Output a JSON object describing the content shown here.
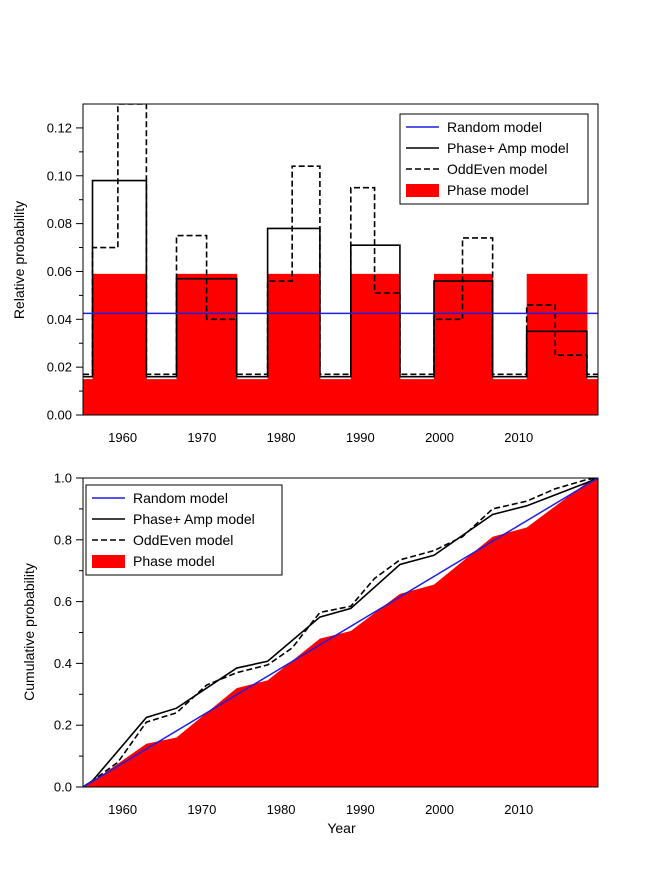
{
  "colors": {
    "random": "#1f1fe0",
    "phase_amp": "#000000",
    "odd_even": "#000000",
    "phase": "#ff0000"
  },
  "chart_data": [
    {
      "type": "step",
      "title": "",
      "xlabel": "",
      "ylabel": "Relative probability",
      "xlim": [
        1955,
        2020
      ],
      "ylim": [
        0,
        0.13
      ],
      "x_ticks": [
        1960,
        1970,
        1980,
        1990,
        2000,
        2010
      ],
      "y_ticks": [
        0.0,
        0.02,
        0.04,
        0.06,
        0.08,
        0.1,
        0.12
      ],
      "y_tick_labels": [
        "0.00",
        "0.02",
        "0.04",
        "0.06",
        "0.08",
        "0.10",
        "0.12"
      ],
      "legend": {
        "position": "top-right",
        "entries": [
          "Random model",
          "Phase+ Amp model",
          "OddEven model",
          "Phase model"
        ]
      },
      "series": [
        {
          "name": "Random model",
          "style": "line",
          "x": [
            1955,
            2020
          ],
          "y": [
            0.0425,
            0.0425
          ]
        },
        {
          "name": "Phase+ Amp model",
          "style": "step-solid",
          "edges": [
            1955,
            1956.2,
            1963,
            1966.8,
            1974.4,
            1978.3,
            1984.9,
            1988.8,
            1995,
            1999.3,
            2006.7,
            2011,
            2018.6,
            2020
          ],
          "values": [
            0.016,
            0.098,
            0.016,
            0.057,
            0.016,
            0.078,
            0.016,
            0.071,
            0.016,
            0.056,
            0.016,
            0.035,
            0.016
          ]
        },
        {
          "name": "OddEven model",
          "style": "step-dashed",
          "edges": [
            1955,
            1956.2,
            1959.4,
            1963,
            1966.8,
            1970.6,
            1974.4,
            1978.3,
            1981.4,
            1984.9,
            1988.8,
            1991.8,
            1995,
            1999.3,
            2002.9,
            2006.7,
            2011,
            2014.6,
            2018.6,
            2020
          ],
          "values": [
            0.017,
            0.07,
            0.13,
            0.017,
            0.075,
            0.04,
            0.017,
            0.056,
            0.104,
            0.017,
            0.095,
            0.051,
            0.017,
            0.04,
            0.074,
            0.017,
            0.046,
            0.025,
            0.017
          ]
        },
        {
          "name": "Phase model",
          "style": "step-filled",
          "edges": [
            1955,
            1956.2,
            1963,
            1966.8,
            1974.4,
            1978.3,
            1984.9,
            1988.8,
            1995,
            1999.3,
            2006.7,
            2011,
            2018.6,
            2020
          ],
          "values": [
            0.015,
            0.059,
            0.015,
            0.059,
            0.015,
            0.059,
            0.015,
            0.059,
            0.015,
            0.059,
            0.015,
            0.059,
            0.015
          ]
        }
      ]
    },
    {
      "type": "line",
      "title": "",
      "xlabel": "Year",
      "ylabel": "Cumulative probability",
      "xlim": [
        1955,
        2020
      ],
      "ylim": [
        0,
        1.0
      ],
      "x_ticks": [
        1960,
        1970,
        1980,
        1990,
        2000,
        2010
      ],
      "y_ticks": [
        0.0,
        0.2,
        0.4,
        0.6,
        0.8,
        1.0
      ],
      "y_tick_labels": [
        "0.0",
        "0.2",
        "0.4",
        "0.6",
        "0.8",
        "1.0"
      ],
      "legend": {
        "position": "top-left",
        "entries": [
          "Random model",
          "Phase+ Amp model",
          "OddEven model",
          "Phase model"
        ]
      },
      "series": [
        {
          "name": "Random model",
          "style": "line",
          "x": [
            1955,
            2020
          ],
          "y": [
            0,
            1.0
          ]
        },
        {
          "name": "Phase+ Amp model",
          "style": "solid",
          "x": [
            1955,
            1956.2,
            1963,
            1966.8,
            1974.4,
            1978.3,
            1984.9,
            1988.8,
            1995,
            1999.3,
            2006.7,
            2011,
            2018.6,
            2020
          ],
          "y": [
            0,
            0.02,
            0.225,
            0.255,
            0.385,
            0.407,
            0.55,
            0.578,
            0.72,
            0.75,
            0.882,
            0.91,
            0.985,
            1.0
          ]
        },
        {
          "name": "OddEven model",
          "style": "dashed",
          "x": [
            1955,
            1956.2,
            1959.4,
            1963,
            1966.8,
            1970.6,
            1974.4,
            1978.3,
            1981.4,
            1984.9,
            1988.8,
            1991.8,
            1995,
            1999.3,
            2002.9,
            2006.7,
            2011,
            2014.6,
            2018.6,
            2020
          ],
          "y": [
            0,
            0.02,
            0.08,
            0.21,
            0.24,
            0.33,
            0.37,
            0.395,
            0.45,
            0.565,
            0.585,
            0.675,
            0.735,
            0.765,
            0.81,
            0.9,
            0.925,
            0.965,
            0.995,
            1.0
          ]
        },
        {
          "name": "Phase model",
          "style": "filled",
          "x": [
            1955,
            1956.2,
            1963,
            1966.8,
            1974.4,
            1978.3,
            1984.9,
            1988.8,
            1995,
            1999.3,
            2006.7,
            2011,
            2018.6,
            2020
          ],
          "y": [
            0,
            0.018,
            0.14,
            0.16,
            0.32,
            0.345,
            0.48,
            0.505,
            0.625,
            0.655,
            0.81,
            0.84,
            0.985,
            1.0
          ]
        }
      ]
    }
  ]
}
